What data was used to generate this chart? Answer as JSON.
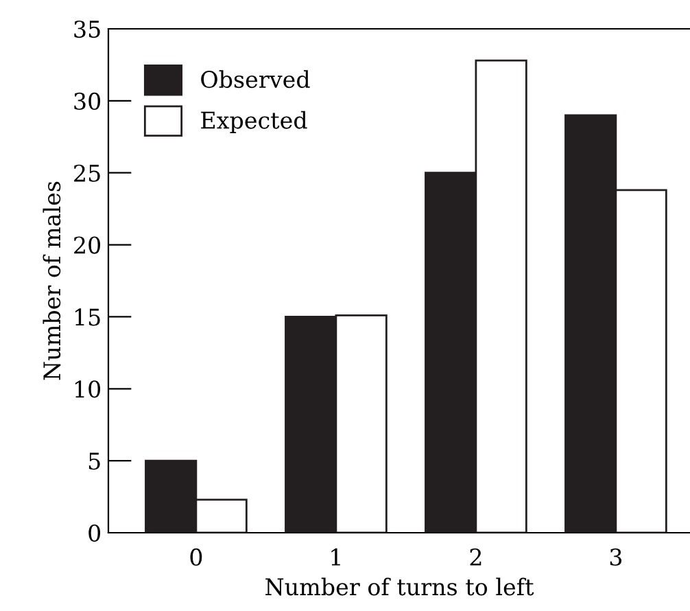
{
  "chart_data": {
    "type": "bar",
    "xlabel": "Number of turns to left",
    "ylabel": "Number of males",
    "categories": [
      "0",
      "1",
      "2",
      "3"
    ],
    "series": [
      {
        "name": "Observed",
        "color": "#231f20",
        "values": [
          5,
          15,
          25,
          29
        ]
      },
      {
        "name": "Expected",
        "color": "#ffffff",
        "values": [
          2.3,
          15.1,
          32.8,
          23.8
        ]
      }
    ],
    "ylim": [
      0,
      35
    ],
    "yticks": [
      0,
      5,
      10,
      15,
      20,
      25,
      30,
      35
    ],
    "grid": false,
    "legend": "top left"
  }
}
